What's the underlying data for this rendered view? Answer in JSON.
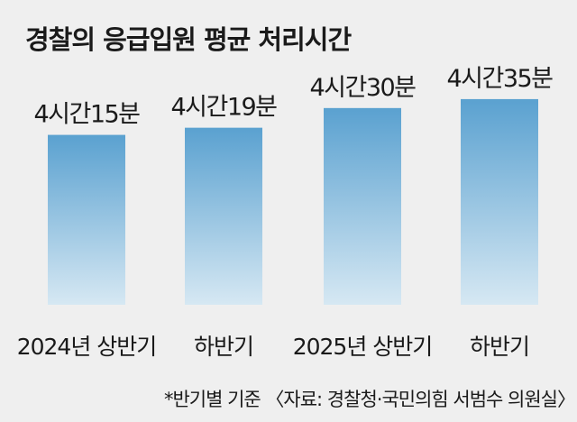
{
  "chart_data": {
    "type": "bar",
    "title": "경찰의 응급입원 평균 처리시간",
    "categories": [
      "2024년 상반기",
      "하반기",
      "2025년 상반기",
      "하반기"
    ],
    "values": [
      255,
      259,
      270,
      275
    ],
    "value_labels": [
      "4시간15분",
      "4시간19분",
      "4시간30분",
      "4시간35분"
    ],
    "unit": "분",
    "ylim": [
      160,
      280
    ],
    "grid": false,
    "legend": "none",
    "note": "*반기별 기준 〈자료: 경찰청·국민의힘 서범수 의원실〉",
    "colors": {
      "bar_top": "#5aa1d0",
      "bar_bottom": "#d6e8f3",
      "background": "#efefef"
    }
  }
}
